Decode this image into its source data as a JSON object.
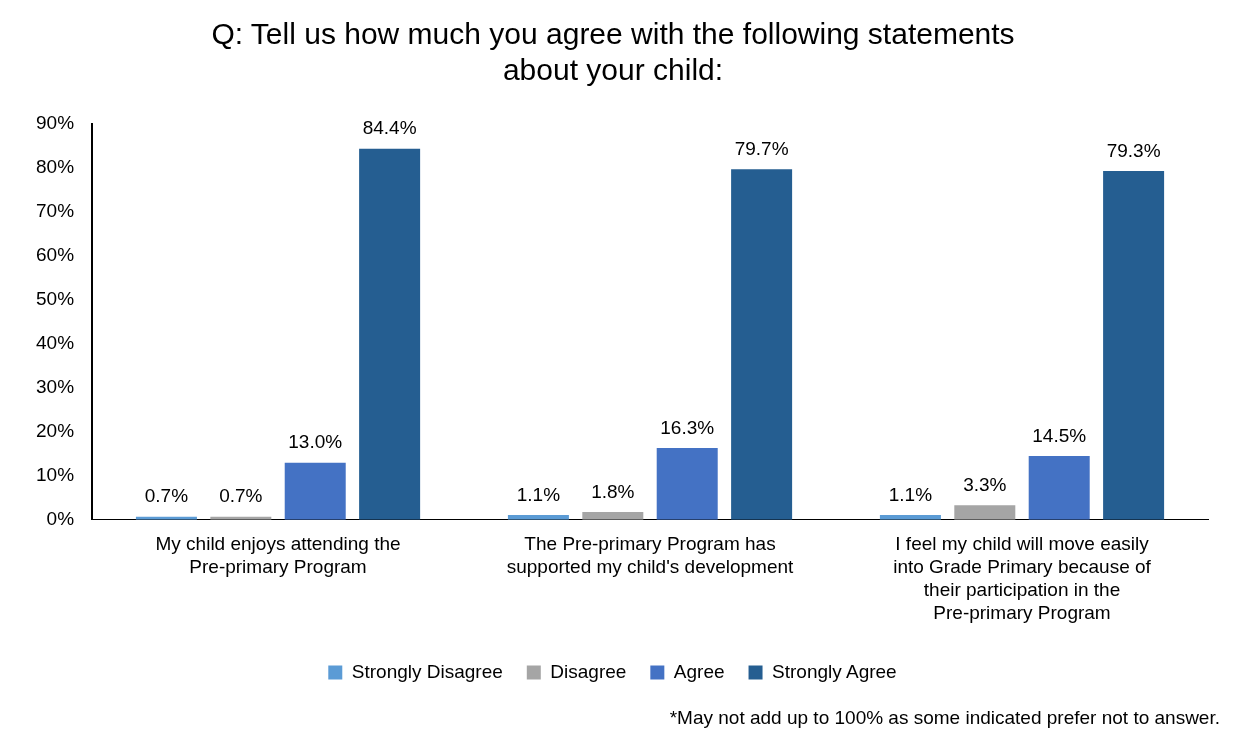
{
  "chart_data": {
    "type": "bar",
    "title": "Q: Tell us how much you agree with the following statements about your child:",
    "categories": [
      "My child enjoys attending the Pre-primary Program",
      "The Pre-primary Program has supported my child's development",
      "I feel my child will move easily into Grade Primary because of their participation in the Pre-primary Program"
    ],
    "series": [
      {
        "name": "Strongly Disagree",
        "color": "#5b9bd5",
        "values": [
          0.7,
          1.1,
          1.1
        ],
        "value_labels": [
          "0.7%",
          "1.1%",
          "1.1%"
        ]
      },
      {
        "name": "Disagree",
        "color": "#a5a5a5",
        "values": [
          0.7,
          1.8,
          3.3
        ],
        "value_labels": [
          "0.7%",
          "1.8%",
          "3.3%"
        ]
      },
      {
        "name": "Agree",
        "color": "#4472c4",
        "values": [
          13.0,
          16.3,
          14.5
        ],
        "value_labels": [
          "13.0%",
          "16.3%",
          "14.5%"
        ]
      },
      {
        "name": "Strongly Agree",
        "color": "#255e91",
        "values": [
          84.4,
          79.7,
          79.3
        ],
        "value_labels": [
          "84.4%",
          "79.7%",
          "79.3%"
        ]
      }
    ],
    "ylim": [
      0,
      90
    ],
    "yticks": [
      {
        "value": 0,
        "label": "0%"
      },
      {
        "value": 10,
        "label": "10%"
      },
      {
        "value": 20,
        "label": "20%"
      },
      {
        "value": 30,
        "label": "30%"
      },
      {
        "value": 40,
        "label": "40%"
      },
      {
        "value": 50,
        "label": "50%"
      },
      {
        "value": 60,
        "label": "60%"
      },
      {
        "value": 70,
        "label": "70%"
      },
      {
        "value": 80,
        "label": "80%"
      },
      {
        "value": 90,
        "label": "90%"
      }
    ],
    "grid": false,
    "legend": "bottom",
    "annotations": [
      "*May not add up to 100% as some indicated prefer not to answer."
    ]
  }
}
